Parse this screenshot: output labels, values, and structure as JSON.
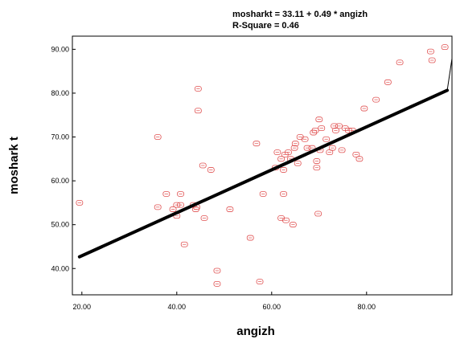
{
  "chart_data": {
    "type": "scatter",
    "equation": "mosharkt = 33.11 + 0.49 * angizh",
    "r_square": "R-Square = 0.46",
    "xlabel": "angizh",
    "ylabel": "moshark t",
    "xlim": [
      18,
      98
    ],
    "ylim": [
      34,
      93
    ],
    "x_ticks": [
      20,
      40,
      60,
      80
    ],
    "x_tick_labels": [
      "20.00",
      "40.00",
      "60.00",
      "80.00"
    ],
    "y_ticks": [
      40,
      50,
      60,
      70,
      80,
      90
    ],
    "y_tick_labels": [
      "40.00",
      "50.00",
      "60.00",
      "70.00",
      "80.00",
      "90.00"
    ],
    "grid": false,
    "point_color": "#e05050",
    "line_color": "#000000",
    "fit": {
      "intercept": 33.11,
      "slope": 0.49,
      "x_start": 19.5,
      "x_end": 97.0
    },
    "points": [
      {
        "x": 19.5,
        "y": 55.0
      },
      {
        "x": 36.0,
        "y": 70.0
      },
      {
        "x": 36.0,
        "y": 54.0
      },
      {
        "x": 37.8,
        "y": 57.0
      },
      {
        "x": 39.2,
        "y": 53.5
      },
      {
        "x": 40.0,
        "y": 52.0
      },
      {
        "x": 40.0,
        "y": 54.5
      },
      {
        "x": 40.8,
        "y": 54.5
      },
      {
        "x": 40.8,
        "y": 57.0
      },
      {
        "x": 41.6,
        "y": 45.5
      },
      {
        "x": 43.5,
        "y": 54.5
      },
      {
        "x": 44.0,
        "y": 53.5
      },
      {
        "x": 44.2,
        "y": 54.0
      },
      {
        "x": 44.5,
        "y": 81.0
      },
      {
        "x": 44.5,
        "y": 76.0
      },
      {
        "x": 45.5,
        "y": 63.5
      },
      {
        "x": 45.8,
        "y": 51.5
      },
      {
        "x": 47.2,
        "y": 62.5
      },
      {
        "x": 48.5,
        "y": 39.5
      },
      {
        "x": 48.5,
        "y": 36.5
      },
      {
        "x": 51.2,
        "y": 53.5
      },
      {
        "x": 55.5,
        "y": 47.0
      },
      {
        "x": 56.8,
        "y": 68.5
      },
      {
        "x": 57.5,
        "y": 37.0
      },
      {
        "x": 58.2,
        "y": 57.0
      },
      {
        "x": 60.8,
        "y": 63.0
      },
      {
        "x": 61.2,
        "y": 66.5
      },
      {
        "x": 62.0,
        "y": 65.0
      },
      {
        "x": 62.0,
        "y": 51.5
      },
      {
        "x": 62.5,
        "y": 62.5
      },
      {
        "x": 62.5,
        "y": 57.0
      },
      {
        "x": 62.8,
        "y": 66.0
      },
      {
        "x": 63.0,
        "y": 51.0
      },
      {
        "x": 63.5,
        "y": 66.5
      },
      {
        "x": 64.0,
        "y": 65.0
      },
      {
        "x": 64.5,
        "y": 50.0
      },
      {
        "x": 64.8,
        "y": 67.5
      },
      {
        "x": 65.0,
        "y": 68.5
      },
      {
        "x": 65.5,
        "y": 64.0
      },
      {
        "x": 66.0,
        "y": 70.0
      },
      {
        "x": 67.0,
        "y": 69.5
      },
      {
        "x": 67.5,
        "y": 67.5
      },
      {
        "x": 68.5,
        "y": 67.5
      },
      {
        "x": 68.8,
        "y": 71.0
      },
      {
        "x": 69.2,
        "y": 71.5
      },
      {
        "x": 69.5,
        "y": 64.5
      },
      {
        "x": 69.5,
        "y": 63.0
      },
      {
        "x": 69.8,
        "y": 52.5
      },
      {
        "x": 70.0,
        "y": 74.0
      },
      {
        "x": 70.2,
        "y": 67.0
      },
      {
        "x": 70.5,
        "y": 72.0
      },
      {
        "x": 71.5,
        "y": 69.5
      },
      {
        "x": 72.2,
        "y": 66.5
      },
      {
        "x": 72.8,
        "y": 67.5
      },
      {
        "x": 73.2,
        "y": 72.5
      },
      {
        "x": 73.5,
        "y": 71.5
      },
      {
        "x": 74.2,
        "y": 72.5
      },
      {
        "x": 74.8,
        "y": 67.0
      },
      {
        "x": 75.5,
        "y": 72.0
      },
      {
        "x": 76.2,
        "y": 71.5
      },
      {
        "x": 77.0,
        "y": 71.5
      },
      {
        "x": 77.8,
        "y": 66.0
      },
      {
        "x": 78.5,
        "y": 65.0
      },
      {
        "x": 79.5,
        "y": 76.5
      },
      {
        "x": 82.0,
        "y": 78.5
      },
      {
        "x": 84.5,
        "y": 82.5
      },
      {
        "x": 87.0,
        "y": 87.0
      },
      {
        "x": 93.5,
        "y": 89.5
      },
      {
        "x": 93.8,
        "y": 87.5
      },
      {
        "x": 96.5,
        "y": 90.5
      }
    ]
  }
}
